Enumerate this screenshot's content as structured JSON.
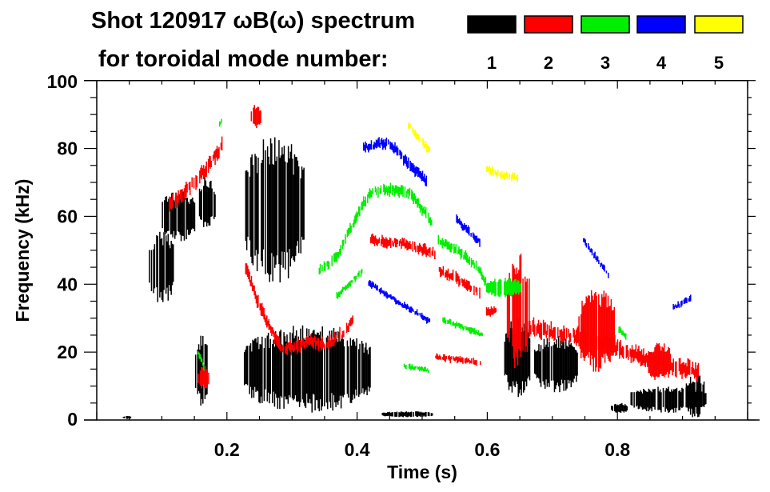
{
  "chart_data": {
    "type": "heatmap",
    "title": "Shot 120917 ωB(ω) spectrum",
    "legend_caption": "for toroidal mode number:",
    "legend_placement": "top-right",
    "modes": [
      {
        "n": "1",
        "color": "#000000"
      },
      {
        "n": "2",
        "color": "#ff0000"
      },
      {
        "n": "3",
        "color": "#00ee00"
      },
      {
        "n": "4",
        "color": "#0000ff"
      },
      {
        "n": "5",
        "color": "#ffff00"
      }
    ],
    "xlabel": "Time (s)",
    "ylabel": "Frequency (kHz)",
    "xlim": [
      0,
      1
    ],
    "ylim": [
      0,
      100
    ],
    "xticks": [
      0.2,
      0.4,
      0.6,
      0.8
    ],
    "xtick_labels": [
      "0.2",
      "0.4",
      "0.6",
      "0.8"
    ],
    "yticks": [
      0,
      20,
      40,
      60,
      80,
      100
    ],
    "ytick_labels": [
      "0",
      "20",
      "40",
      "60",
      "80",
      "100"
    ],
    "blobs": [
      {
        "mode": 1,
        "t": [
          0.04,
          0.052
        ],
        "f": [
          0.3,
          1.2
        ]
      },
      {
        "mode": 1,
        "t": [
          0.08,
          0.118
        ],
        "f": [
          34,
          56
        ]
      },
      {
        "mode": 1,
        "t": [
          0.1,
          0.15
        ],
        "f": [
          52,
          68
        ]
      },
      {
        "mode": 1,
        "t": [
          0.157,
          0.181
        ],
        "f": [
          56,
          72
        ]
      },
      {
        "mode": 1,
        "t": [
          0.151,
          0.17
        ],
        "f": [
          3,
          26
        ]
      },
      {
        "mode": 1,
        "t": [
          0.226,
          0.42
        ],
        "f": [
          2,
          28
        ]
      },
      {
        "mode": 1,
        "t": [
          0.228,
          0.318
        ],
        "f": [
          40,
          84
        ]
      },
      {
        "mode": 1,
        "t": [
          0.438,
          0.515
        ],
        "f": [
          0.8,
          2.6
        ]
      },
      {
        "mode": 1,
        "t": [
          0.626,
          0.665
        ],
        "f": [
          6,
          31
        ]
      },
      {
        "mode": 1,
        "t": [
          0.672,
          0.738
        ],
        "f": [
          8,
          25
        ]
      },
      {
        "mode": 1,
        "t": [
          0.82,
          0.935
        ],
        "f": [
          2,
          10
        ]
      },
      {
        "mode": 1,
        "t": [
          0.905,
          0.933
        ],
        "f": [
          0.5,
          14
        ]
      },
      {
        "mode": 1,
        "t": [
          0.79,
          0.815
        ],
        "f": [
          2,
          5
        ]
      },
      {
        "mode": 2,
        "t": [
          0.63,
          0.664
        ],
        "f": [
          14,
          50
        ]
      },
      {
        "mode": 2,
        "t": [
          0.74,
          0.795
        ],
        "f": [
          14,
          39
        ]
      },
      {
        "mode": 2,
        "t": [
          0.847,
          0.882
        ],
        "f": [
          11,
          23
        ]
      },
      {
        "mode": 2,
        "t": [
          0.235,
          0.252
        ],
        "f": [
          86,
          93
        ]
      },
      {
        "mode": 2,
        "t": [
          0.155,
          0.172
        ],
        "f": [
          9,
          16
        ]
      },
      {
        "mode": 3,
        "t": [
          0.598,
          0.652
        ],
        "f": [
          36,
          42
        ]
      }
    ],
    "traces": [
      {
        "mode": 2,
        "w": 3.5,
        "points": [
          [
            0.111,
            63
          ],
          [
            0.15,
            70
          ],
          [
            0.175,
            76
          ],
          [
            0.193,
            81
          ]
        ]
      },
      {
        "mode": 2,
        "w": 3,
        "points": [
          [
            0.228,
            45
          ],
          [
            0.25,
            33
          ],
          [
            0.283,
            21
          ],
          [
            0.31,
            22
          ],
          [
            0.328,
            23.5
          ],
          [
            0.353,
            22
          ],
          [
            0.38,
            26
          ],
          [
            0.394,
            29.5
          ]
        ]
      },
      {
        "mode": 2,
        "w": 2.5,
        "points": [
          [
            0.42,
            53
          ],
          [
            0.47,
            52
          ],
          [
            0.52,
            49
          ]
        ]
      },
      {
        "mode": 2,
        "w": 2.5,
        "points": [
          [
            0.524,
            44
          ],
          [
            0.56,
            41
          ],
          [
            0.589,
            37
          ]
        ]
      },
      {
        "mode": 2,
        "w": 2,
        "points": [
          [
            0.598,
            32
          ],
          [
            0.614,
            32
          ]
        ]
      },
      {
        "mode": 2,
        "w": 1.5,
        "points": [
          [
            0.52,
            18.5
          ],
          [
            0.59,
            17
          ]
        ]
      },
      {
        "mode": 2,
        "w": 4,
        "points": [
          [
            0.663,
            27
          ],
          [
            0.73,
            25
          ],
          [
            0.795,
            21.5
          ],
          [
            0.86,
            17
          ],
          [
            0.925,
            14
          ]
        ]
      },
      {
        "mode": 3,
        "w": 2.5,
        "points": [
          [
            0.341,
            44
          ],
          [
            0.368,
            48
          ],
          [
            0.406,
            63
          ],
          [
            0.42,
            67
          ],
          [
            0.44,
            68
          ],
          [
            0.48,
            67
          ],
          [
            0.515,
            58
          ]
        ]
      },
      {
        "mode": 3,
        "w": 2.5,
        "points": [
          [
            0.524,
            53
          ],
          [
            0.56,
            49
          ],
          [
            0.585,
            45
          ],
          [
            0.598,
            40
          ]
        ]
      },
      {
        "mode": 3,
        "w": 1.5,
        "points": [
          [
            0.368,
            36.5
          ],
          [
            0.408,
            44
          ]
        ]
      },
      {
        "mode": 3,
        "w": 1.5,
        "points": [
          [
            0.531,
            29.5
          ],
          [
            0.593,
            25
          ]
        ]
      },
      {
        "mode": 3,
        "w": 1.2,
        "points": [
          [
            0.47,
            16
          ],
          [
            0.51,
            14.5
          ]
        ]
      },
      {
        "mode": 3,
        "w": 1.5,
        "points": [
          [
            0.155,
            20
          ],
          [
            0.165,
            15
          ]
        ]
      },
      {
        "mode": 3,
        "w": 1.5,
        "points": [
          [
            0.8,
            27
          ],
          [
            0.815,
            24
          ]
        ]
      },
      {
        "mode": 3,
        "w": 1.2,
        "points": [
          [
            0.188,
            87
          ],
          [
            0.192,
            89
          ]
        ]
      },
      {
        "mode": 4,
        "w": 2.5,
        "points": [
          [
            0.409,
            80
          ],
          [
            0.43,
            81.5
          ],
          [
            0.45,
            81.5
          ],
          [
            0.475,
            76
          ],
          [
            0.507,
            70
          ]
        ]
      },
      {
        "mode": 4,
        "w": 2,
        "points": [
          [
            0.552,
            59
          ],
          [
            0.589,
            52
          ]
        ]
      },
      {
        "mode": 4,
        "w": 1.5,
        "points": [
          [
            0.417,
            40.5
          ],
          [
            0.46,
            35
          ],
          [
            0.512,
            29
          ]
        ]
      },
      {
        "mode": 4,
        "w": 1.5,
        "points": [
          [
            0.747,
            53
          ],
          [
            0.788,
            42
          ]
        ]
      },
      {
        "mode": 4,
        "w": 1.5,
        "points": [
          [
            0.885,
            33
          ],
          [
            0.913,
            36
          ]
        ]
      },
      {
        "mode": 5,
        "w": 2,
        "points": [
          [
            0.478,
            87
          ],
          [
            0.512,
            79
          ]
        ]
      },
      {
        "mode": 5,
        "w": 1.8,
        "points": [
          [
            0.598,
            74
          ],
          [
            0.62,
            72
          ],
          [
            0.647,
            71.5
          ]
        ]
      }
    ]
  }
}
